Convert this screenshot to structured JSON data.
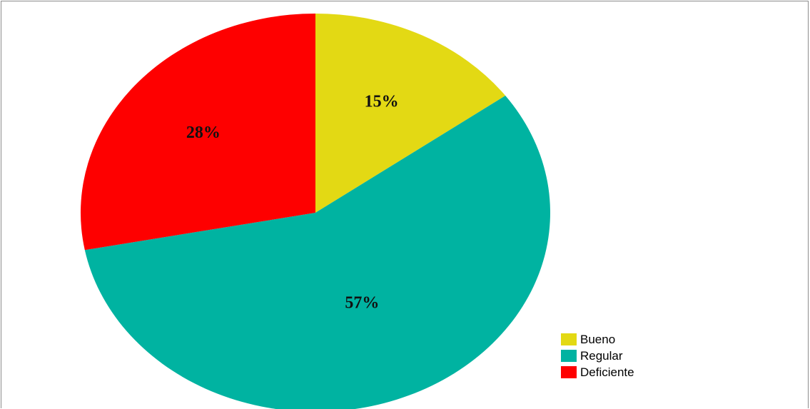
{
  "chart_data": {
    "type": "pie",
    "title": "",
    "slices": [
      {
        "name": "Bueno",
        "value": 15,
        "label": "15%",
        "color": "#e3d914"
      },
      {
        "name": "Regular",
        "value": 57,
        "label": "57%",
        "color": "#00b3a1"
      },
      {
        "name": "Deficiente",
        "value": 28,
        "label": "28%",
        "color": "#fe0000"
      }
    ],
    "legend_position": "bottom-right"
  }
}
